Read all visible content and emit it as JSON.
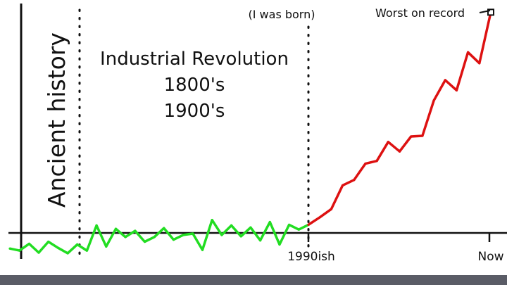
{
  "chart_data": {
    "type": "line",
    "title": "",
    "xlabel": "",
    "ylabel": "",
    "grid": false,
    "legend": "none",
    "x_ticks": [
      "1990ish",
      "Now"
    ],
    "eras": {
      "ancient": "Ancient history",
      "industrial": [
        "Industrial Revolution",
        "1800's",
        "1900's"
      ],
      "born": "(I was born)"
    },
    "annotation": "Worst on record",
    "series": [
      {
        "color": "#22dd22",
        "values": [
          -2.3,
          -2.6,
          -1.6,
          -2.9,
          -1.3,
          -2.2,
          -3.0,
          -1.7,
          -2.6,
          1.1,
          -2.0,
          0.6,
          -0.6,
          0.3,
          -1.3,
          -0.6,
          0.7,
          -1.0,
          -0.3,
          -0.1,
          -2.5,
          1.9,
          -0.3,
          1.1,
          -0.5,
          0.8,
          -1.1,
          1.6,
          -1.7,
          1.2,
          0.5,
          1.2
        ]
      },
      {
        "color": "#dd1111",
        "values": [
          1.2,
          2.3,
          3.5,
          7.0,
          7.8,
          10.2,
          10.6,
          13.4,
          12.0,
          14.2,
          14.3,
          19.5,
          22.5,
          21.0,
          26.6,
          25.0,
          32.5
        ]
      }
    ]
  }
}
